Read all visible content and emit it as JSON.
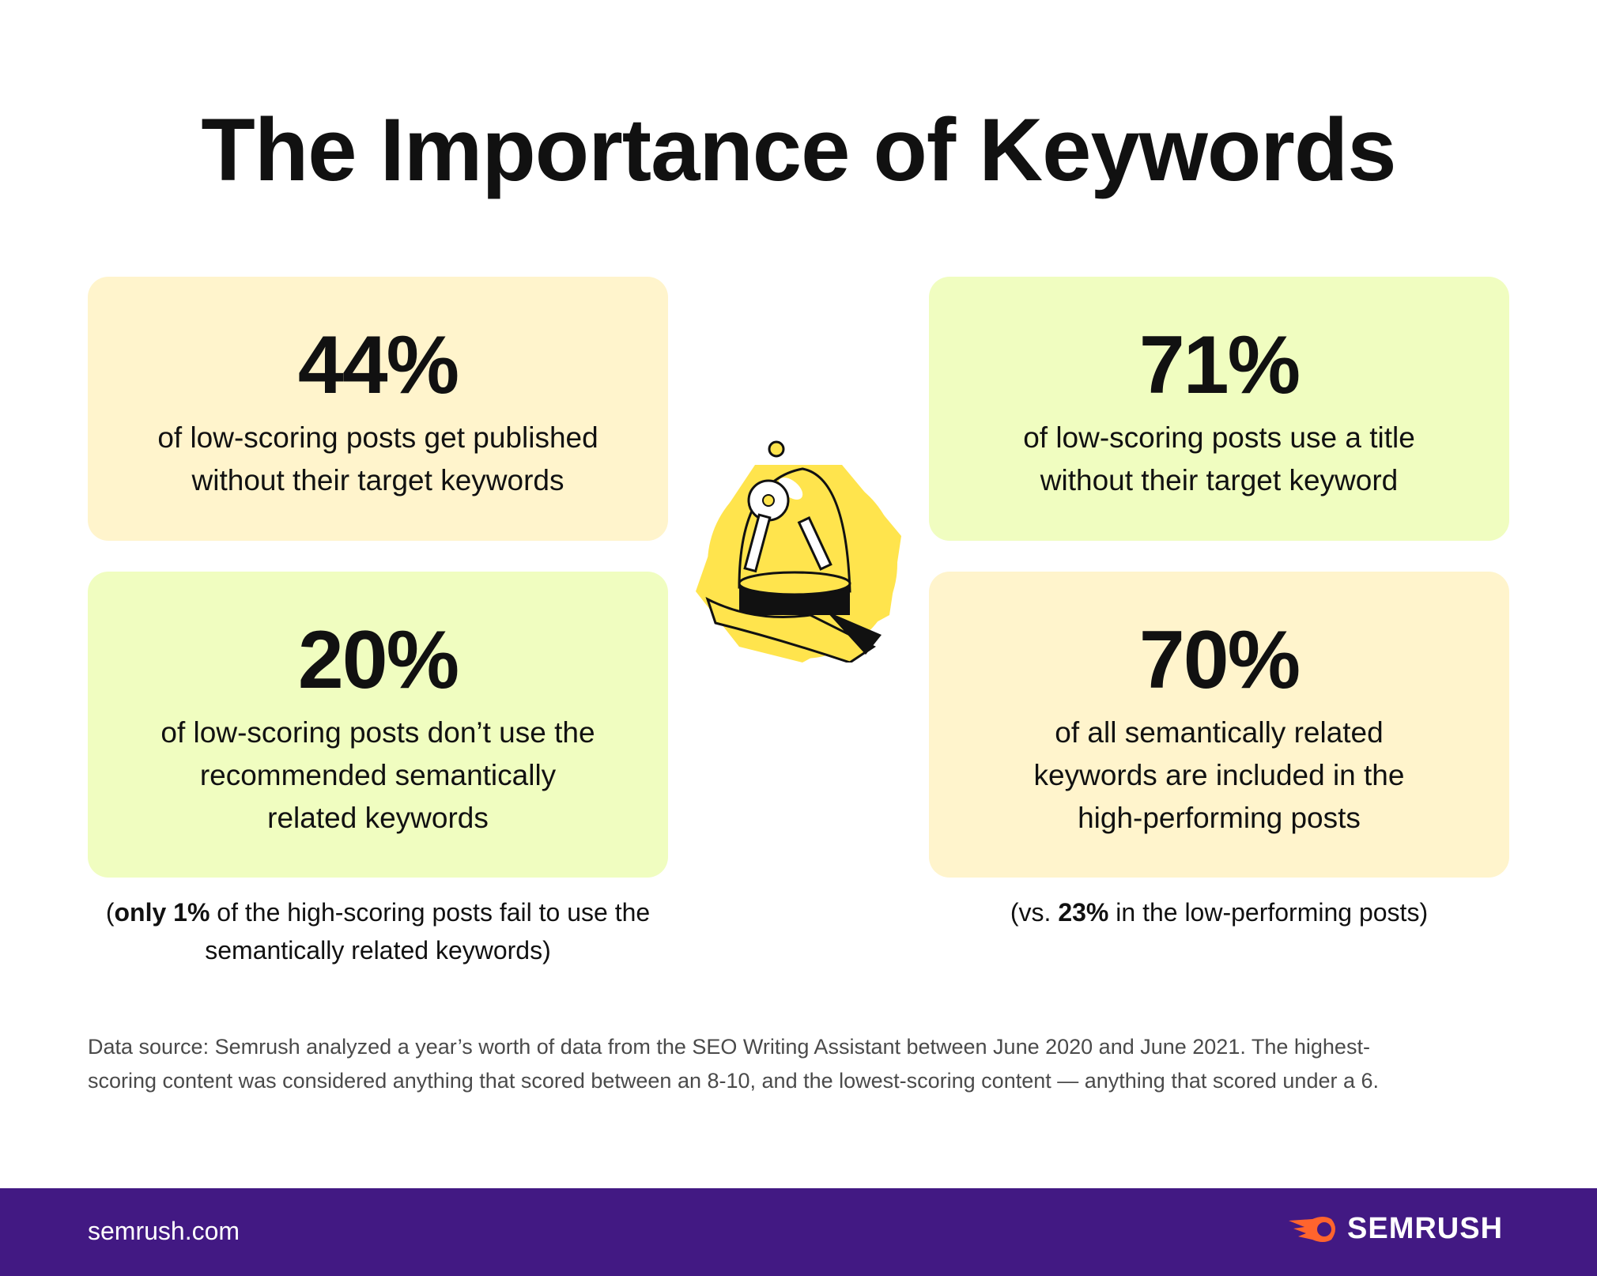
{
  "title": "The Importance of Keywords",
  "cards": [
    {
      "value": "44%",
      "text": "of low-scoring posts get published without their target keywords"
    },
    {
      "value": "71%",
      "text": "of low-scoring posts use a title without their target keyword"
    },
    {
      "value": "20%",
      "text": "of low-scoring posts don’t use the recommended semantically related keywords"
    },
    {
      "value": "70%",
      "text": "of all semantically related keywords are included in the high-performing posts"
    }
  ],
  "notes": {
    "left": {
      "open": "(",
      "bold": "only 1%",
      "rest": " of the high-scoring posts fail to use the semantically related keywords)"
    },
    "right": {
      "open": "(vs. ",
      "bold": "23%",
      "rest": " in the low-performing posts)"
    }
  },
  "source": "Data source: Semrush analyzed a year’s worth of data from the SEO Writing Assistant between June 2020 and June 2021. The highest-scoring content was considered anything that scored between an 8-10, and the lowest-scoring content — anything that scored under a 6.",
  "footer": {
    "site": "semrush.com",
    "logo": "SEMRUSH"
  },
  "colors": {
    "cream": "#fff4cc",
    "lime": "#f0fdc0",
    "footer": "#421983",
    "accent": "#ff642d",
    "yellow": "#ffe44d"
  },
  "illustration": "hand-holding-keys-under-glass-dome-icon"
}
